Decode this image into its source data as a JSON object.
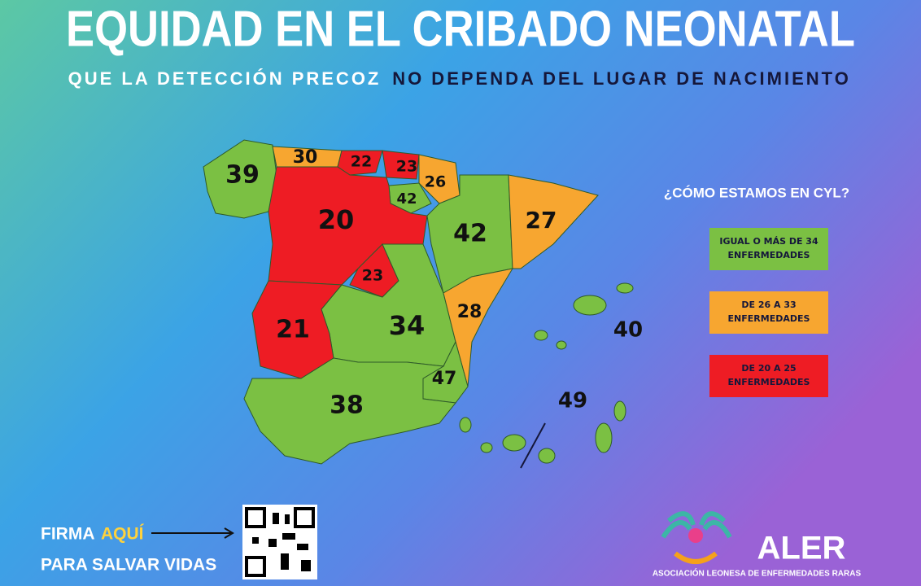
{
  "header": {
    "title": "EQUIDAD EN EL CRIBADO NEONATAL",
    "subtitle_light": "QUE LA DETECCIÓN PRECOZ",
    "subtitle_dark": "NO DEPENDA DEL LUGAR DE NACIMIENTO"
  },
  "map": {
    "regions": [
      {
        "value": 39,
        "color": "#7bc043"
      },
      {
        "value": 30,
        "color": "#f7a630"
      },
      {
        "value": 22,
        "color": "#ee1c24"
      },
      {
        "value": 23,
        "color": "#ee1c24"
      },
      {
        "value": 26,
        "color": "#f7a630"
      },
      {
        "value": 42,
        "color": "#7bc043"
      },
      {
        "value": 20,
        "color": "#ee1c24"
      },
      {
        "value": 42,
        "color": "#7bc043"
      },
      {
        "value": 27,
        "color": "#f7a630"
      },
      {
        "value": 23,
        "color": "#ee1c24"
      },
      {
        "value": 34,
        "color": "#7bc043"
      },
      {
        "value": 28,
        "color": "#f7a630"
      },
      {
        "value": 47,
        "color": "#7bc043"
      },
      {
        "value": 21,
        "color": "#ee1c24"
      },
      {
        "value": 38,
        "color": "#7bc043"
      },
      {
        "value": 40,
        "color": "#7bc043"
      },
      {
        "value": 49,
        "color": "#7bc043"
      }
    ]
  },
  "legend": {
    "title": "¿CÓMO ESTAMOS EN CYL?",
    "items": [
      {
        "line1": "IGUAL O MÁS DE 34",
        "line2": "ENFERMEDADES",
        "color": "#7bc043"
      },
      {
        "line1": "DE 26 A 33",
        "line2": "ENFERMEDADES",
        "color": "#f7a630"
      },
      {
        "line1": "DE 20 A 25",
        "line2": "ENFERMEDADES",
        "color": "#ee1c24"
      }
    ]
  },
  "footer": {
    "cta_first": "FIRMA",
    "cta_highlight": "AQUÍ",
    "cta_second": "PARA SALVAR VIDAS",
    "logo": "ALER",
    "organization": "ASOCIACIÓN LEONESA DE ENFERMEDADES RARAS"
  }
}
